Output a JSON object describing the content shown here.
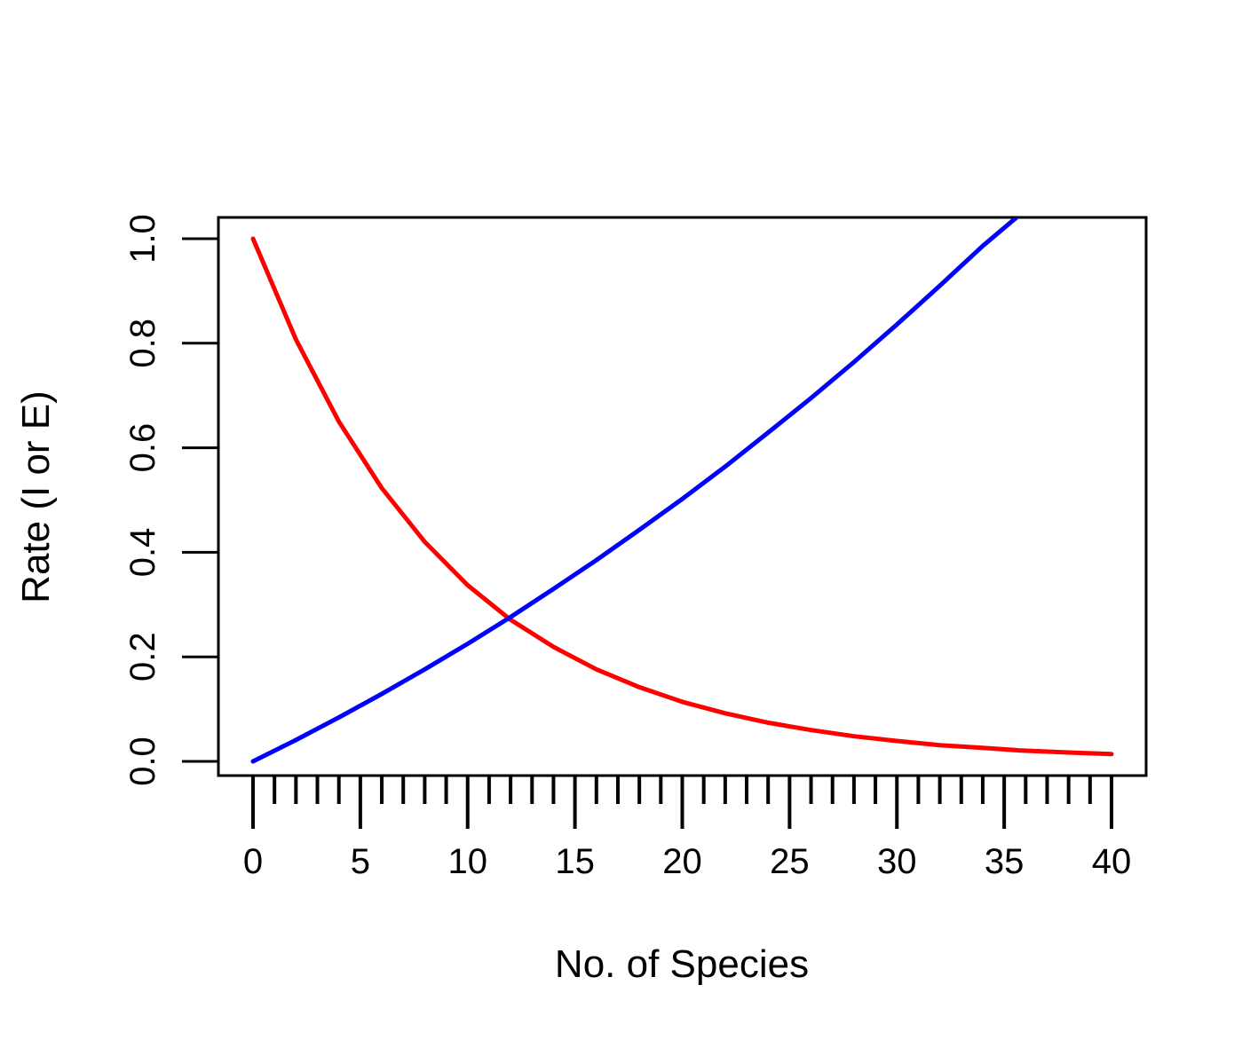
{
  "chart_data": {
    "type": "line",
    "title": "",
    "xlabel": "No. of Species",
    "ylabel": "Rate (I or E)",
    "xlim": [
      0,
      40
    ],
    "ylim": [
      0,
      1.0
    ],
    "x_ticks": [
      0,
      5,
      10,
      15,
      20,
      25,
      30,
      35,
      40
    ],
    "x_tick_labels": [
      "0",
      "5",
      "10",
      "15",
      "20",
      "25",
      "30",
      "35",
      "40"
    ],
    "x_minor_ticks_every": 1,
    "y_ticks": [
      0,
      0.2,
      0.4,
      0.6,
      0.8,
      1.0
    ],
    "y_tick_labels": [
      "0.0",
      "0.2",
      "0.4",
      "0.6",
      "0.8",
      "1.0"
    ],
    "grid": false,
    "legend": "none",
    "x": [
      0,
      2,
      4,
      6,
      8,
      10,
      12,
      14,
      16,
      18,
      20,
      22,
      24,
      26,
      28,
      30,
      32,
      34,
      35.7,
      38,
      40
    ],
    "series": [
      {
        "color": "#ff0000",
        "values": [
          1.0,
          0.807,
          0.65,
          0.523,
          0.42,
          0.337,
          0.271,
          0.219,
          0.176,
          0.142,
          0.114,
          0.092,
          0.074,
          0.06,
          0.048,
          0.039,
          0.031,
          0.026,
          0.021,
          0.017,
          0.014
        ]
      },
      {
        "color": "#0000ff",
        "values": [
          0.0,
          0.041,
          0.084,
          0.129,
          0.176,
          0.225,
          0.276,
          0.33,
          0.385,
          0.443,
          0.502,
          0.564,
          0.629,
          0.695,
          0.764,
          0.836,
          0.91,
          0.986,
          1.045,
          null,
          null
        ]
      }
    ]
  }
}
